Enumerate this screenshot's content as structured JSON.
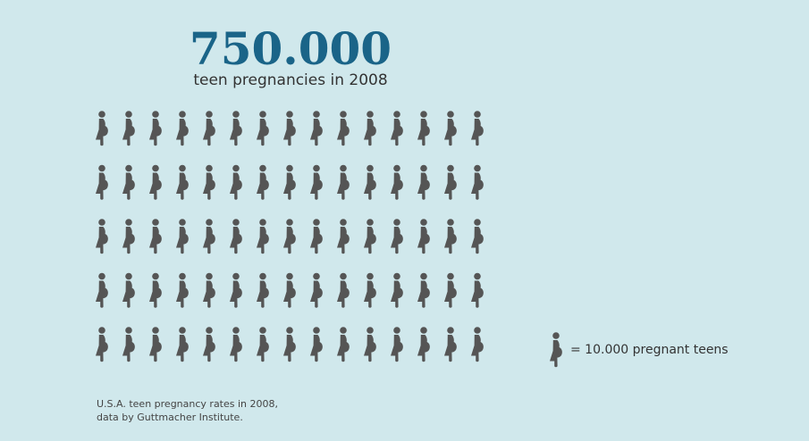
{
  "headline": {
    "value": "750.000",
    "subtitle": "teen pregnancies in 2008"
  },
  "colors": {
    "background": "#d0e8ec",
    "accent": "#1a6488",
    "icon": "#555555",
    "text": "#333333"
  },
  "legend": {
    "icon": "pregnant-woman-icon",
    "label": "= 10.000 pregnant teens"
  },
  "source": {
    "line1": "U.S.A. teen pregnancy rates in 2008,",
    "line2": "data by Guttmacher Institute."
  },
  "chart_data": {
    "type": "pictogram",
    "title": "750.000",
    "subtitle": "teen pregnancies in 2008",
    "unit_value": 10000,
    "unit_label": "= 10.000 pregnant teens",
    "icon_count": 75,
    "rows": 5,
    "columns": 15,
    "total": 750000
  }
}
